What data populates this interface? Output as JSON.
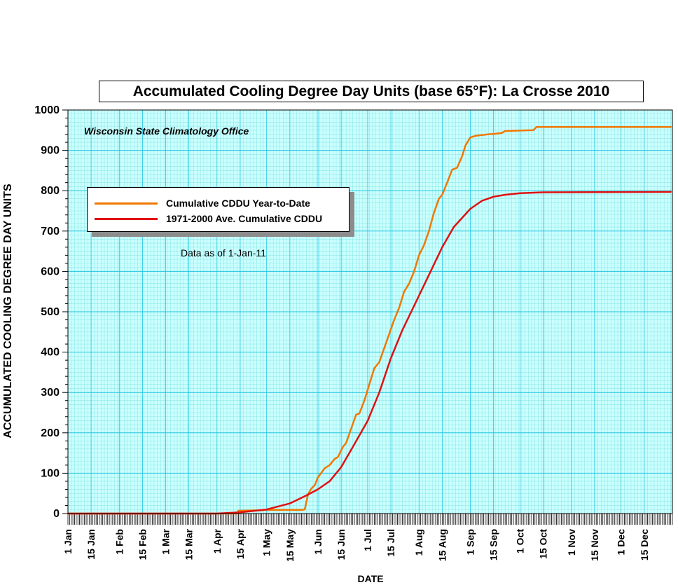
{
  "chart_data": {
    "type": "line",
    "title": "Accumulated Cooling Degree Day Units (base 65°F): La Crosse 2010",
    "credit": "Wisconsin State Climatology Office",
    "note": "Data as of 1-Jan-11",
    "xlabel": "DATE",
    "ylabel": "ACCUMULATED COOLING DEGREE DAY UNITS",
    "ylim": [
      0,
      1000
    ],
    "yticks": [
      0,
      100,
      200,
      300,
      400,
      500,
      600,
      700,
      800,
      900,
      1000
    ],
    "xlim": [
      "2010-01-01",
      "2010-12-31"
    ],
    "xticks": [
      {
        "date": "2010-01-01",
        "label": "1 Jan"
      },
      {
        "date": "2010-01-15",
        "label": "15 Jan"
      },
      {
        "date": "2010-02-01",
        "label": "1 Feb"
      },
      {
        "date": "2010-02-15",
        "label": "15 Feb"
      },
      {
        "date": "2010-03-01",
        "label": "1 Mar"
      },
      {
        "date": "2010-03-15",
        "label": "15 Mar"
      },
      {
        "date": "2010-04-01",
        "label": "1 Apr"
      },
      {
        "date": "2010-04-15",
        "label": "15 Apr"
      },
      {
        "date": "2010-05-01",
        "label": "1 May"
      },
      {
        "date": "2010-05-15",
        "label": "15 May"
      },
      {
        "date": "2010-06-01",
        "label": "1 Jun"
      },
      {
        "date": "2010-06-15",
        "label": "15 Jun"
      },
      {
        "date": "2010-07-01",
        "label": "1 Jul"
      },
      {
        "date": "2010-07-15",
        "label": "15 Jul"
      },
      {
        "date": "2010-08-01",
        "label": "1 Aug"
      },
      {
        "date": "2010-08-15",
        "label": "15 Aug"
      },
      {
        "date": "2010-09-01",
        "label": "1 Sep"
      },
      {
        "date": "2010-09-15",
        "label": "15 Sep"
      },
      {
        "date": "2010-10-01",
        "label": "1 Oct"
      },
      {
        "date": "2010-10-15",
        "label": "15 Oct"
      },
      {
        "date": "2010-11-01",
        "label": "1 Nov"
      },
      {
        "date": "2010-11-15",
        "label": "15 Nov"
      },
      {
        "date": "2010-12-01",
        "label": "1 Dec"
      },
      {
        "date": "2010-12-15",
        "label": "15 Dec"
      }
    ],
    "grid": true,
    "legend_position": "upper-left",
    "series": [
      {
        "name": "Cumulative CDDU Year-to-Date",
        "color": "#f07800",
        "points": [
          [
            "2010-01-01",
            0
          ],
          [
            "2010-04-13",
            0
          ],
          [
            "2010-04-14",
            7
          ],
          [
            "2010-04-28",
            8
          ],
          [
            "2010-05-01",
            9
          ],
          [
            "2010-05-22",
            9
          ],
          [
            "2010-05-24",
            10
          ],
          [
            "2010-05-26",
            48
          ],
          [
            "2010-05-28",
            62
          ],
          [
            "2010-05-30",
            70
          ],
          [
            "2010-06-01",
            90
          ],
          [
            "2010-06-05",
            112
          ],
          [
            "2010-06-08",
            120
          ],
          [
            "2010-06-11",
            135
          ],
          [
            "2010-06-13",
            140
          ],
          [
            "2010-06-16",
            165
          ],
          [
            "2010-06-18",
            175
          ],
          [
            "2010-06-21",
            210
          ],
          [
            "2010-06-24",
            245
          ],
          [
            "2010-06-26",
            248
          ],
          [
            "2010-06-29",
            280
          ],
          [
            "2010-07-02",
            320
          ],
          [
            "2010-07-05",
            360
          ],
          [
            "2010-07-08",
            375
          ],
          [
            "2010-07-11",
            410
          ],
          [
            "2010-07-14",
            445
          ],
          [
            "2010-07-17",
            480
          ],
          [
            "2010-07-20",
            510
          ],
          [
            "2010-07-23",
            550
          ],
          [
            "2010-07-26",
            570
          ],
          [
            "2010-07-29",
            600
          ],
          [
            "2010-08-01",
            640
          ],
          [
            "2010-08-04",
            665
          ],
          [
            "2010-08-07",
            700
          ],
          [
            "2010-08-10",
            745
          ],
          [
            "2010-08-13",
            780
          ],
          [
            "2010-08-15",
            790
          ],
          [
            "2010-08-18",
            820
          ],
          [
            "2010-08-21",
            852
          ],
          [
            "2010-08-24",
            857
          ],
          [
            "2010-08-27",
            885
          ],
          [
            "2010-08-29",
            912
          ],
          [
            "2010-09-01",
            932
          ],
          [
            "2010-09-04",
            936
          ],
          [
            "2010-09-08",
            938
          ],
          [
            "2010-09-12",
            940
          ],
          [
            "2010-09-16",
            941
          ],
          [
            "2010-09-20",
            943
          ],
          [
            "2010-09-22",
            948
          ],
          [
            "2010-10-09",
            950
          ],
          [
            "2010-10-11",
            958
          ],
          [
            "2010-12-31",
            958
          ]
        ]
      },
      {
        "name": "1971-2000 Ave. Cumulative CDDU",
        "color": "#e01010",
        "points": [
          [
            "2010-01-01",
            0
          ],
          [
            "2010-04-01",
            0
          ],
          [
            "2010-04-15",
            3
          ],
          [
            "2010-05-01",
            10
          ],
          [
            "2010-05-15",
            25
          ],
          [
            "2010-05-25",
            45
          ],
          [
            "2010-06-01",
            60
          ],
          [
            "2010-06-08",
            80
          ],
          [
            "2010-06-15",
            115
          ],
          [
            "2010-06-22",
            165
          ],
          [
            "2010-07-01",
            230
          ],
          [
            "2010-07-08",
            300
          ],
          [
            "2010-07-15",
            385
          ],
          [
            "2010-07-22",
            455
          ],
          [
            "2010-08-01",
            540
          ],
          [
            "2010-08-08",
            600
          ],
          [
            "2010-08-15",
            660
          ],
          [
            "2010-08-22",
            710
          ],
          [
            "2010-09-01",
            755
          ],
          [
            "2010-09-08",
            775
          ],
          [
            "2010-09-15",
            785
          ],
          [
            "2010-09-22",
            790
          ],
          [
            "2010-10-01",
            794
          ],
          [
            "2010-10-15",
            796
          ],
          [
            "2010-12-31",
            797
          ]
        ]
      }
    ]
  }
}
